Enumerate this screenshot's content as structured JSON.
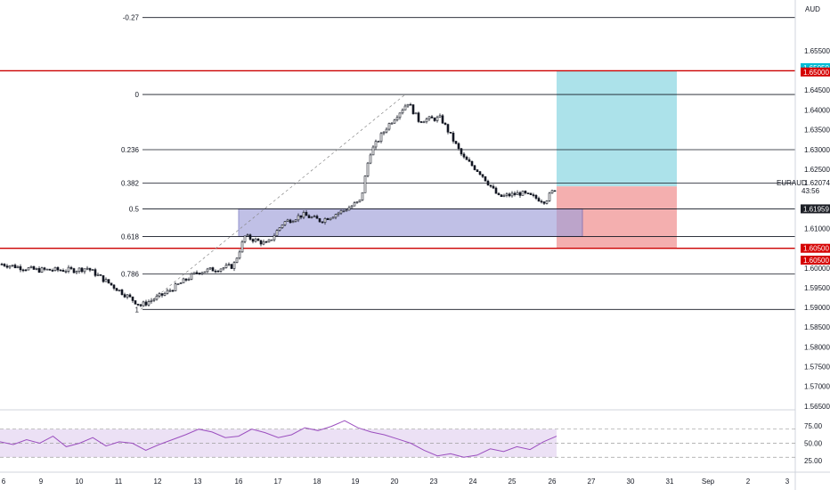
{
  "currency": "AUD",
  "colors": {
    "background": "#ffffff",
    "candle": "#131722",
    "red_line": "#cc0000",
    "target_fill": "#9edde6",
    "stop_fill": "#f3a6a6",
    "zone_fill": "#9f9fd9",
    "zone_stroke": "#5b5bb5",
    "rsi_line": "#9b4fbf",
    "rsi_band": "#e7d9f3",
    "badge_red": "#d50000",
    "badge_cyan": "#00bcd4",
    "badge_dark": "#1c1f26"
  },
  "chart_data": {
    "type": "candlestick",
    "symbol": "EURAUD",
    "price_range": [
      1.5645,
      1.6675
    ],
    "y_ticks": [
      "1.65500",
      "1.64500",
      "1.64000",
      "1.63500",
      "1.63000",
      "1.62500",
      "1.61000",
      "1.60000",
      "1.59500",
      "1.59000",
      "1.58500",
      "1.58000",
      "1.57500",
      "1.57000",
      "1.56500"
    ],
    "x_ticks": [
      "6",
      "9",
      "10",
      "11",
      "12",
      "13",
      "16",
      "17",
      "18",
      "19",
      "20",
      "23",
      "24",
      "25",
      "26",
      "27",
      "30",
      "31",
      "Sep",
      "2",
      "3"
    ],
    "close_path": [
      {
        "date": "6",
        "close": 1.601
      },
      {
        "date": "9",
        "close": 1.5995
      },
      {
        "date": "10",
        "close": 1.5995
      },
      {
        "date": "10b",
        "close": 1.6
      },
      {
        "date": "11",
        "close": 1.5965
      },
      {
        "date": "11b",
        "close": 1.5905
      },
      {
        "date": "12",
        "close": 1.5935
      },
      {
        "date": "13",
        "close": 1.599
      },
      {
        "date": "13b",
        "close": 1.6005
      },
      {
        "date": "16",
        "close": 1.608
      },
      {
        "date": "16b",
        "close": 1.606
      },
      {
        "date": "17",
        "close": 1.6115
      },
      {
        "date": "17b",
        "close": 1.6135
      },
      {
        "date": "18",
        "close": 1.612
      },
      {
        "date": "18b",
        "close": 1.6145
      },
      {
        "date": "19",
        "close": 1.617
      },
      {
        "date": "19b",
        "close": 1.629
      },
      {
        "date": "20",
        "close": 1.636
      },
      {
        "date": "20b",
        "close": 1.642
      },
      {
        "date": "20c",
        "close": 1.6375
      },
      {
        "date": "23",
        "close": 1.638
      },
      {
        "date": "23b",
        "close": 1.628
      },
      {
        "date": "24",
        "close": 1.624
      },
      {
        "date": "24b",
        "close": 1.618
      },
      {
        "date": "25",
        "close": 1.619
      },
      {
        "date": "25b",
        "close": 1.618
      },
      {
        "date": "26",
        "close": 1.617
      },
      {
        "date": "26b",
        "close": 1.6207
      }
    ],
    "fib_levels": [
      {
        "label": "-0.27",
        "price": 1.6635
      },
      {
        "label": "0",
        "price": 1.644
      },
      {
        "label": "0.236",
        "price": 1.63
      },
      {
        "label": "0.382",
        "price": 1.6215
      },
      {
        "label": "0.5",
        "price": 1.615
      },
      {
        "label": "0.618",
        "price": 1.608
      },
      {
        "label": "0.786",
        "price": 1.5985
      },
      {
        "label": "1",
        "price": 1.5895
      }
    ],
    "horizontal_lines": [
      1.65,
      1.605
    ],
    "price_badges": [
      {
        "text": "1.65050",
        "price": 1.6508,
        "color": "cyan"
      },
      {
        "text": "1.65000",
        "price": 1.6497,
        "color": "red"
      },
      {
        "text": "1.61959",
        "price": 1.615,
        "color": "dark"
      },
      {
        "text": "1.60500",
        "price": 1.605,
        "color": "red"
      },
      {
        "text": "1.60500",
        "price": 1.602,
        "color": "red"
      }
    ],
    "last_price": {
      "label": "EURAUD",
      "price": "1.62074",
      "countdown": "43:56"
    },
    "position": {
      "entry": 1.6207,
      "target": 1.65,
      "stop": 1.605
    },
    "zone": {
      "top": 1.615,
      "bottom": 1.608
    },
    "rsi": {
      "ticks": [
        "75.00",
        "50.00",
        "25.00"
      ],
      "upper": 70,
      "mid": 50,
      "lower": 30,
      "values": [
        52,
        48,
        55,
        50,
        60,
        45,
        50,
        58,
        46,
        52,
        50,
        40,
        48,
        55,
        62,
        70,
        66,
        58,
        60,
        70,
        65,
        58,
        62,
        72,
        68,
        74,
        82,
        72,
        66,
        62,
        56,
        50,
        40,
        32,
        35,
        30,
        33,
        42,
        38,
        45,
        41,
        52,
        60
      ]
    }
  }
}
